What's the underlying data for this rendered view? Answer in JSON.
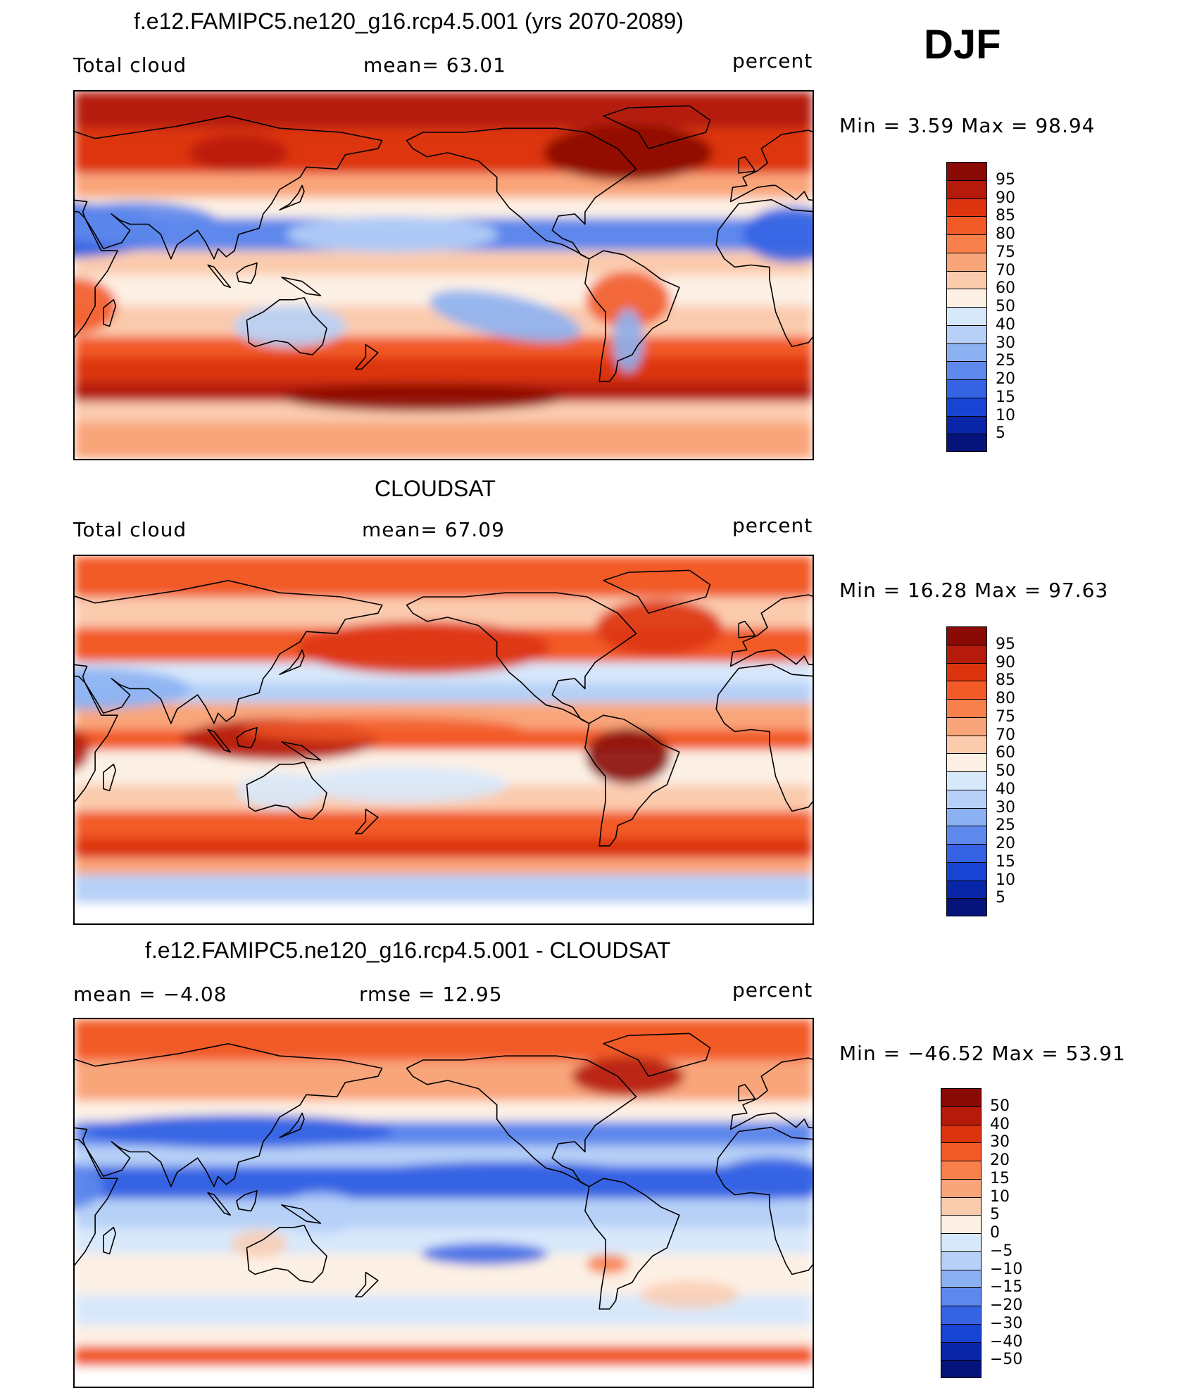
{
  "season": "DJF",
  "panels": [
    {
      "id": "model",
      "title": "f.e12.FAMIPC5.ne120_g16.rcp4.5.001 (yrs 2070-2089)",
      "left_label": "Total cloud",
      "mid_label": "mean=   63.01",
      "right_label": "percent",
      "minmax": "Min =    3.59  Max =   98.94",
      "legend_ticks": [
        "95",
        "90",
        "85",
        "80",
        "75",
        "70",
        "60",
        "50",
        "40",
        "30",
        "25",
        "20",
        "15",
        "10",
        "5"
      ],
      "colors": [
        "#8a0a06",
        "#b51a0a",
        "#dd3410",
        "#f25a28",
        "#f7804d",
        "#f9a57a",
        "#fbcbae",
        "#fdf0e4",
        "#d8e8fb",
        "#b6d0f7",
        "#8cb1f2",
        "#5e88ec",
        "#3563e3",
        "#1744d3",
        "#0a26a8",
        "#06137a"
      ]
    },
    {
      "id": "obs",
      "title": "CLOUDSAT",
      "left_label": "Total cloud",
      "mid_label": "mean=   67.09",
      "right_label": "percent",
      "minmax": "Min =   16.28  Max =   97.63",
      "legend_ticks": [
        "95",
        "90",
        "85",
        "80",
        "75",
        "70",
        "60",
        "50",
        "40",
        "30",
        "25",
        "20",
        "15",
        "10",
        "5"
      ],
      "colors": [
        "#8a0a06",
        "#b51a0a",
        "#dd3410",
        "#f25a28",
        "#f7804d",
        "#f9a57a",
        "#fbcbae",
        "#fdf0e4",
        "#d8e8fb",
        "#b6d0f7",
        "#8cb1f2",
        "#5e88ec",
        "#3563e3",
        "#1744d3",
        "#0a26a8",
        "#06137a"
      ]
    },
    {
      "id": "diff",
      "title": "f.e12.FAMIPC5.ne120_g16.rcp4.5.001 - CLOUDSAT",
      "left_label": "mean =   −4.08",
      "mid_label": "rmse =    12.95",
      "right_label": "percent",
      "minmax": "Min = −46.52  Max =   53.91",
      "legend_ticks": [
        "50",
        "40",
        "30",
        "20",
        "15",
        "10",
        "5",
        "0",
        "−5",
        "−10",
        "−15",
        "−20",
        "−30",
        "−40",
        "−50"
      ],
      "colors": [
        "#8a0a06",
        "#b51a0a",
        "#dd3410",
        "#f25a28",
        "#f7804d",
        "#f9a57a",
        "#fbcbae",
        "#fdf0e4",
        "#d8e8fb",
        "#b6d0f7",
        "#8cb1f2",
        "#5e88ec",
        "#3563e3",
        "#1744d3",
        "#0a26a8",
        "#06137a"
      ]
    }
  ]
}
